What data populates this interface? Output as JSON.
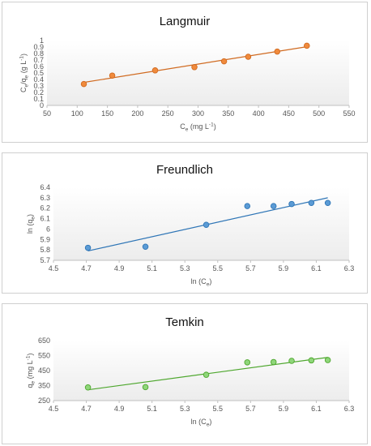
{
  "chart_data": [
    {
      "type": "scatter",
      "title": "Langmuir",
      "xlabel": {
        "base": "C",
        "sub": "e",
        "rest": " (mg L",
        "sup": "-1",
        "end": ")"
      },
      "ylabel": {
        "base": "C",
        "sub": "e",
        "rest": "/q",
        "sub2": "e",
        "rest2": " (g L",
        "sup": "-1",
        "end": ")"
      },
      "xlim": [
        50,
        550
      ],
      "ylim": [
        0,
        1
      ],
      "xticks": [
        50,
        100,
        150,
        200,
        250,
        300,
        350,
        400,
        450,
        500,
        550
      ],
      "yticks": [
        0,
        0.1,
        0.2,
        0.3,
        0.4,
        0.5,
        0.6,
        0.7,
        0.8,
        0.9,
        1
      ],
      "xtick_labels": [
        "50",
        "100",
        "150",
        "200",
        "250",
        "300",
        "350",
        "400",
        "450",
        "500",
        "550"
      ],
      "ytick_labels": [
        "0",
        "0.1",
        "0.2",
        "0.3",
        "0.4",
        "0.5",
        "0.6",
        "0.7",
        "0.8",
        "0.9",
        "1"
      ],
      "grid": false,
      "color": "#f08a3c",
      "edge_color": "#d06a20",
      "points": {
        "x": [
          111,
          158,
          229,
          294,
          343,
          383,
          431,
          480
        ],
        "y": [
          0.33,
          0.46,
          0.54,
          0.59,
          0.68,
          0.75,
          0.83,
          0.92
        ]
      },
      "trendline": {
        "x": [
          111,
          480
        ],
        "y": [
          0.355,
          0.905
        ]
      }
    },
    {
      "type": "scatter",
      "title": "Freundlich",
      "xlabel": {
        "base": "ln (C",
        "sub": "e",
        "rest": ")"
      },
      "ylabel": {
        "base": "ln (q",
        "sub": "e",
        "rest": ")"
      },
      "xlim": [
        4.5,
        6.3
      ],
      "ylim": [
        5.7,
        6.4
      ],
      "xticks": [
        4.5,
        4.7,
        4.9,
        5.1,
        5.3,
        5.5,
        5.7,
        5.9,
        6.1,
        6.3
      ],
      "yticks": [
        5.7,
        5.8,
        5.9,
        6,
        6.1,
        6.2,
        6.3,
        6.4
      ],
      "xtick_labels": [
        "4.5",
        "4.7",
        "4.9",
        "5.1",
        "5.3",
        "5.5",
        "5.7",
        "5.9",
        "6.1",
        "6.3"
      ],
      "ytick_labels": [
        "5.7",
        "5.8",
        "5.9",
        "6",
        "6.1",
        "6.2",
        "6.3",
        "6.4"
      ],
      "grid": false,
      "color": "#5b9bd5",
      "edge_color": "#2e75b6",
      "points": {
        "x": [
          4.71,
          5.06,
          5.43,
          5.68,
          5.84,
          5.95,
          6.07,
          6.17
        ],
        "y": [
          5.82,
          5.83,
          6.04,
          6.22,
          6.22,
          6.24,
          6.25,
          6.25
        ]
      },
      "trendline": {
        "x": [
          4.71,
          6.17
        ],
        "y": [
          5.79,
          6.3
        ]
      }
    },
    {
      "type": "scatter",
      "title": "Temkin",
      "xlabel": {
        "base": "ln (C",
        "sub": "e",
        "rest": ")"
      },
      "ylabel": {
        "base": "q",
        "sub": "e",
        "rest": " (mg L",
        "sup": "-1",
        "end": ")"
      },
      "xlim": [
        4.5,
        6.3
      ],
      "ylim": [
        250,
        650
      ],
      "xticks": [
        4.5,
        4.7,
        4.9,
        5.1,
        5.3,
        5.5,
        5.7,
        5.9,
        6.1,
        6.3
      ],
      "yticks": [
        250,
        350,
        450,
        550,
        650
      ],
      "xtick_labels": [
        "4.5",
        "4.7",
        "4.9",
        "5.1",
        "5.3",
        "5.5",
        "5.7",
        "5.9",
        "6.1",
        "6.3"
      ],
      "ytick_labels": [
        "250",
        "350",
        "450",
        "550",
        "650"
      ],
      "grid": false,
      "color": "#8fd67a",
      "edge_color": "#4ea72e",
      "points": {
        "x": [
          4.71,
          5.06,
          5.43,
          5.68,
          5.84,
          5.95,
          6.07,
          6.17
        ],
        "y": [
          338,
          340,
          422,
          505,
          507,
          515,
          518,
          520
        ]
      },
      "trendline": {
        "x": [
          4.71,
          6.17
        ],
        "y": [
          322,
          538
        ]
      }
    }
  ]
}
